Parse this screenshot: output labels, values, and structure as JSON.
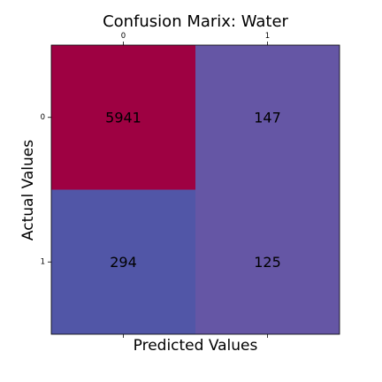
{
  "chart_data": {
    "type": "heatmap",
    "title": "Confusion Marix: Water",
    "xlabel": "Predicted Values",
    "ylabel": "Actual Values",
    "x_categories": [
      "0",
      "1"
    ],
    "y_categories": [
      "0",
      "1"
    ],
    "values": [
      [
        5941,
        147
      ],
      [
        294,
        125
      ]
    ],
    "cell_labels": [
      [
        "5941",
        "147"
      ],
      [
        "294",
        "125"
      ]
    ],
    "x_ticks_position": "top-and-bottom",
    "grid": false,
    "colors": {
      "cell_0_0": "#9e0142",
      "cell_0_1": "#6556a5",
      "cell_1_0": "#5156a7",
      "cell_1_1": "#6556a5"
    }
  }
}
